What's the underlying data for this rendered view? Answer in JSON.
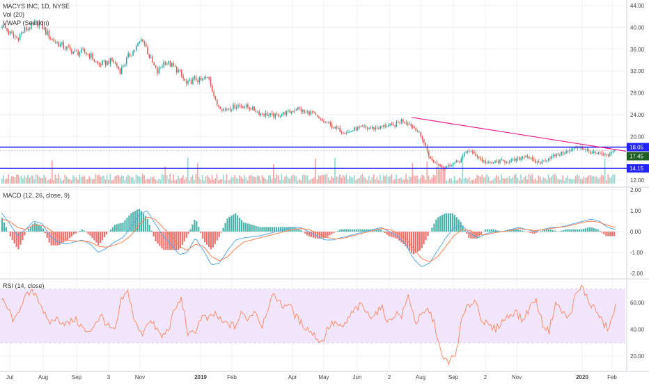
{
  "header": {
    "title": "MACYS INC, 1D, NYSE",
    "vol_label": "Vol (20)",
    "vwap_label": "VWAP (Session)"
  },
  "price_badges": {
    "upper": "18.05",
    "last": "17.45",
    "lower": "14.15"
  },
  "macd": {
    "label": "MACD (12, 26, close, 9)"
  },
  "rsi": {
    "label": "RSI (14, close)"
  },
  "colors": {
    "up": "#26a69a",
    "down": "#ef5350",
    "hline": "#2323ff",
    "trendline": "#e91e8c",
    "macd_line": "#5aa9e6",
    "signal_line": "#ff7f50",
    "rsi_line": "#ff8c69",
    "rsi_band": "#f1e6fb",
    "grid": "#eef0f3",
    "last_badge": "#1b5e20",
    "axis_text": "#444444"
  },
  "chart_data": [
    {
      "type": "candlestick",
      "title": "MACYS INC, 1D, NYSE",
      "ylim": [
        12,
        44
      ],
      "y_ticks": [
        "44.00",
        "40.00",
        "36.00",
        "32.00",
        "28.00",
        "24.00",
        "20.00",
        "12.00"
      ],
      "x_ticks": [
        "Jul",
        "Aug",
        "Sep",
        "3",
        "Nov",
        "2019",
        "Feb",
        "Apr",
        "May",
        "Jun",
        "2",
        "Aug",
        "Sep",
        "2",
        "Nov",
        "2020",
        "Feb"
      ],
      "horizontal_lines": [
        18.05,
        14.15
      ],
      "last_price": 17.45,
      "trendline": {
        "from": [
          "2019-07",
          23.5
        ],
        "to": [
          "2020-02",
          17.3
        ]
      },
      "close_path": [
        [
          "2018-07",
          40.5
        ],
        [
          "2018-07",
          38.9
        ],
        [
          "2018-07",
          38.0
        ],
        [
          "2018-07",
          39.5
        ],
        [
          "2018-08",
          40.2
        ],
        [
          "2018-08",
          41.0
        ],
        [
          "2018-08",
          39.0
        ],
        [
          "2018-08",
          37.5
        ],
        [
          "2018-08",
          36.7
        ],
        [
          "2018-09",
          36.0
        ],
        [
          "2018-09",
          35.3
        ],
        [
          "2018-09",
          35.6
        ],
        [
          "2018-09",
          34.8
        ],
        [
          "2018-10",
          33.2
        ],
        [
          "2018-10",
          33.5
        ],
        [
          "2018-10",
          34.0
        ],
        [
          "2018-10",
          32.0
        ],
        [
          "2018-10",
          34.5
        ],
        [
          "2018-11",
          36.0
        ],
        [
          "2018-11",
          38.0
        ],
        [
          "2018-11",
          34.5
        ],
        [
          "2018-11",
          31.7
        ],
        [
          "2018-12",
          33.8
        ],
        [
          "2018-12",
          33.0
        ],
        [
          "2018-12",
          31.8
        ],
        [
          "2018-12",
          29.5
        ],
        [
          "2018-12",
          30.5
        ],
        [
          "2019-01",
          30.2
        ],
        [
          "2019-01",
          30.9
        ],
        [
          "2019-01",
          26.0
        ],
        [
          "2019-01",
          25.0
        ],
        [
          "2019-02",
          25.3
        ],
        [
          "2019-02",
          25.7
        ],
        [
          "2019-02",
          25.5
        ],
        [
          "2019-02",
          25.0
        ],
        [
          "2019-03",
          24.2
        ],
        [
          "2019-03",
          24.0
        ],
        [
          "2019-03",
          23.8
        ],
        [
          "2019-03",
          24.2
        ],
        [
          "2019-04",
          24.5
        ],
        [
          "2019-04",
          25.2
        ],
        [
          "2019-04",
          24.4
        ],
        [
          "2019-04",
          24.4
        ],
        [
          "2019-05",
          23.0
        ],
        [
          "2019-05",
          22.5
        ],
        [
          "2019-05",
          21.6
        ],
        [
          "2019-06",
          21.0
        ],
        [
          "2019-06",
          20.8
        ],
        [
          "2019-06",
          21.5
        ],
        [
          "2019-06",
          21.6
        ],
        [
          "2019-07",
          21.5
        ],
        [
          "2019-07",
          21.6
        ],
        [
          "2019-07",
          22.0
        ],
        [
          "2019-07",
          21.9
        ],
        [
          "2019-07",
          23.0
        ],
        [
          "2019-07",
          22.5
        ],
        [
          "2019-08",
          21.5
        ],
        [
          "2019-08",
          19.5
        ],
        [
          "2019-08",
          15.8
        ],
        [
          "2019-08",
          15.0
        ],
        [
          "2019-08",
          14.3
        ],
        [
          "2019-09",
          15.0
        ],
        [
          "2019-09",
          15.5
        ],
        [
          "2019-09",
          17.5
        ],
        [
          "2019-09",
          16.8
        ],
        [
          "2019-10",
          15.6
        ],
        [
          "2019-10",
          15.0
        ],
        [
          "2019-10",
          15.4
        ],
        [
          "2019-10",
          15.5
        ],
        [
          "2019-11",
          15.5
        ],
        [
          "2019-11",
          15.9
        ],
        [
          "2019-11",
          16.6
        ],
        [
          "2019-11",
          15.4
        ],
        [
          "2019-12",
          15.2
        ],
        [
          "2019-12",
          16.0
        ],
        [
          "2019-12",
          16.6
        ],
        [
          "2019-12",
          17.0
        ],
        [
          "2020-01",
          17.4
        ],
        [
          "2020-01",
          18.2
        ],
        [
          "2020-01",
          17.6
        ],
        [
          "2020-01",
          17.0
        ],
        [
          "2020-02",
          16.8
        ],
        [
          "2020-02",
          16.4
        ],
        [
          "2020-02",
          17.45
        ]
      ]
    },
    {
      "type": "line",
      "title": "MACD (12, 26, close, 9)",
      "ylim": [
        -2.0,
        2.0
      ],
      "y_ticks": [
        "2.00",
        "1.00",
        "0.00",
        "-1.00",
        "-2.00"
      ],
      "series": [
        {
          "values": [
            0.9,
            0.4,
            -0.2,
            0.1,
            0.5,
            0.4,
            -0.2,
            -0.5,
            -0.6,
            -0.5,
            -0.4,
            -0.6,
            -1.0,
            -0.8,
            -0.5,
            -0.3,
            0.2,
            0.8,
            1.0,
            0.4,
            -0.2,
            -0.6,
            -1.1,
            -1.0,
            -0.3,
            -0.9,
            -1.6,
            -1.5,
            -0.9,
            -0.4,
            -0.3,
            -0.25,
            -0.2,
            -0.1,
            0.0,
            0.1,
            0.2,
            0.2,
            0.0,
            -0.2,
            -0.4,
            -0.4,
            -0.3,
            -0.2,
            -0.1,
            0.0,
            0.1,
            0.2,
            0.0,
            -0.2,
            -0.6,
            -1.3,
            -1.7,
            -1.5,
            -0.9,
            -0.3,
            0.2,
            0.3,
            -0.1,
            -0.3,
            -0.1,
            0.0,
            0.0,
            0.1,
            0.2,
            0.1,
            0.0,
            0.1,
            0.2,
            0.2,
            0.3,
            0.4,
            0.5,
            0.6,
            0.5,
            0.2,
            0.1
          ]
        },
        {
          "values": [
            0.6,
            0.5,
            0.2,
            0.1,
            0.3,
            0.3,
            0.1,
            -0.2,
            -0.4,
            -0.45,
            -0.45,
            -0.5,
            -0.7,
            -0.75,
            -0.65,
            -0.5,
            -0.2,
            0.3,
            0.7,
            0.6,
            0.2,
            -0.2,
            -0.7,
            -0.9,
            -0.6,
            -0.7,
            -1.2,
            -1.4,
            -1.2,
            -0.8,
            -0.5,
            -0.4,
            -0.3,
            -0.2,
            -0.1,
            0.0,
            0.1,
            0.15,
            0.1,
            -0.05,
            -0.25,
            -0.35,
            -0.35,
            -0.25,
            -0.15,
            -0.05,
            0.05,
            0.15,
            0.1,
            -0.05,
            -0.3,
            -0.8,
            -1.3,
            -1.45,
            -1.2,
            -0.7,
            -0.2,
            0.1,
            0.05,
            -0.15,
            -0.15,
            -0.05,
            0.0,
            0.05,
            0.15,
            0.1,
            0.05,
            0.08,
            0.15,
            0.2,
            0.25,
            0.35,
            0.45,
            0.5,
            0.45,
            0.3,
            0.2
          ]
        }
      ]
    },
    {
      "type": "line",
      "title": "RSI (14, close)",
      "ylim": [
        10,
        80
      ],
      "y_ticks": [
        "60.00",
        "40.00",
        "20.00"
      ],
      "band": [
        30,
        70
      ],
      "series": [
        {
          "values": [
            62,
            55,
            45,
            60,
            66,
            68,
            58,
            44,
            48,
            46,
            44,
            48,
            42,
            36,
            45,
            50,
            42,
            38,
            62,
            68,
            45,
            36,
            47,
            42,
            34,
            40,
            55,
            63,
            35,
            38,
            50,
            47,
            52,
            45,
            44,
            42,
            52,
            48,
            55,
            42,
            58,
            66,
            57,
            60,
            50,
            44,
            40,
            35,
            30,
            42,
            45,
            40,
            48,
            55,
            58,
            50,
            52,
            56,
            45,
            52,
            50,
            66,
            45,
            50,
            55,
            42,
            18,
            16,
            20,
            48,
            58,
            62,
            47,
            42,
            40,
            46,
            50,
            54,
            46,
            55,
            63,
            45,
            38,
            60,
            53,
            48,
            65,
            72,
            60,
            55,
            45,
            40,
            58
          ]
        }
      ]
    }
  ]
}
